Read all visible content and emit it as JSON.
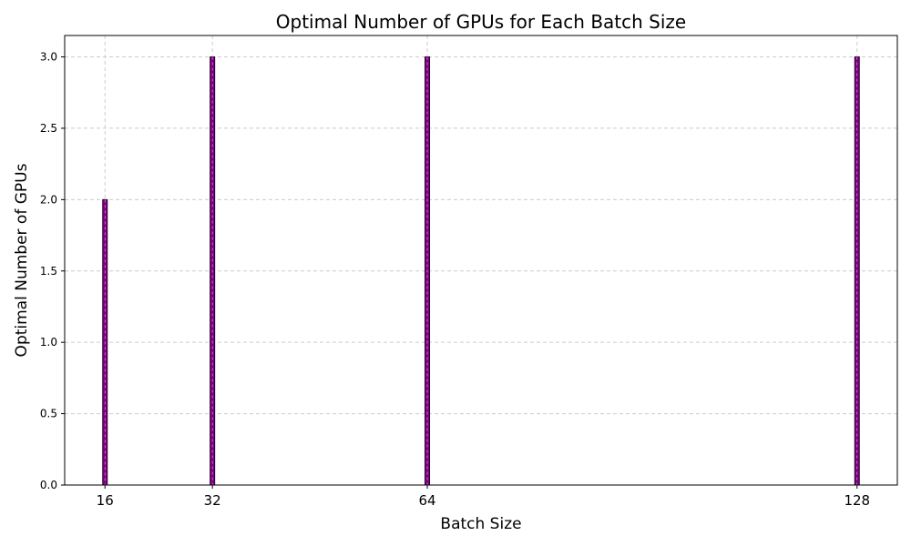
{
  "chart_data": {
    "type": "bar",
    "title": "Optimal Number of GPUs for Each Batch Size",
    "xlabel": "Batch Size",
    "ylabel": "Optimal Number of GPUs",
    "x": [
      16,
      32,
      64,
      128
    ],
    "xticks": [
      "16",
      "32",
      "64",
      "128"
    ],
    "values": [
      2,
      3,
      3,
      3
    ],
    "yticks": [
      "0.0",
      "0.5",
      "1.0",
      "1.5",
      "2.0",
      "2.5",
      "3.0"
    ],
    "xlim": [
      10,
      134
    ],
    "ylim": [
      0,
      3.15
    ],
    "grid": true,
    "bar_color": "#800080",
    "bar_edge_color": "#2a0030"
  }
}
